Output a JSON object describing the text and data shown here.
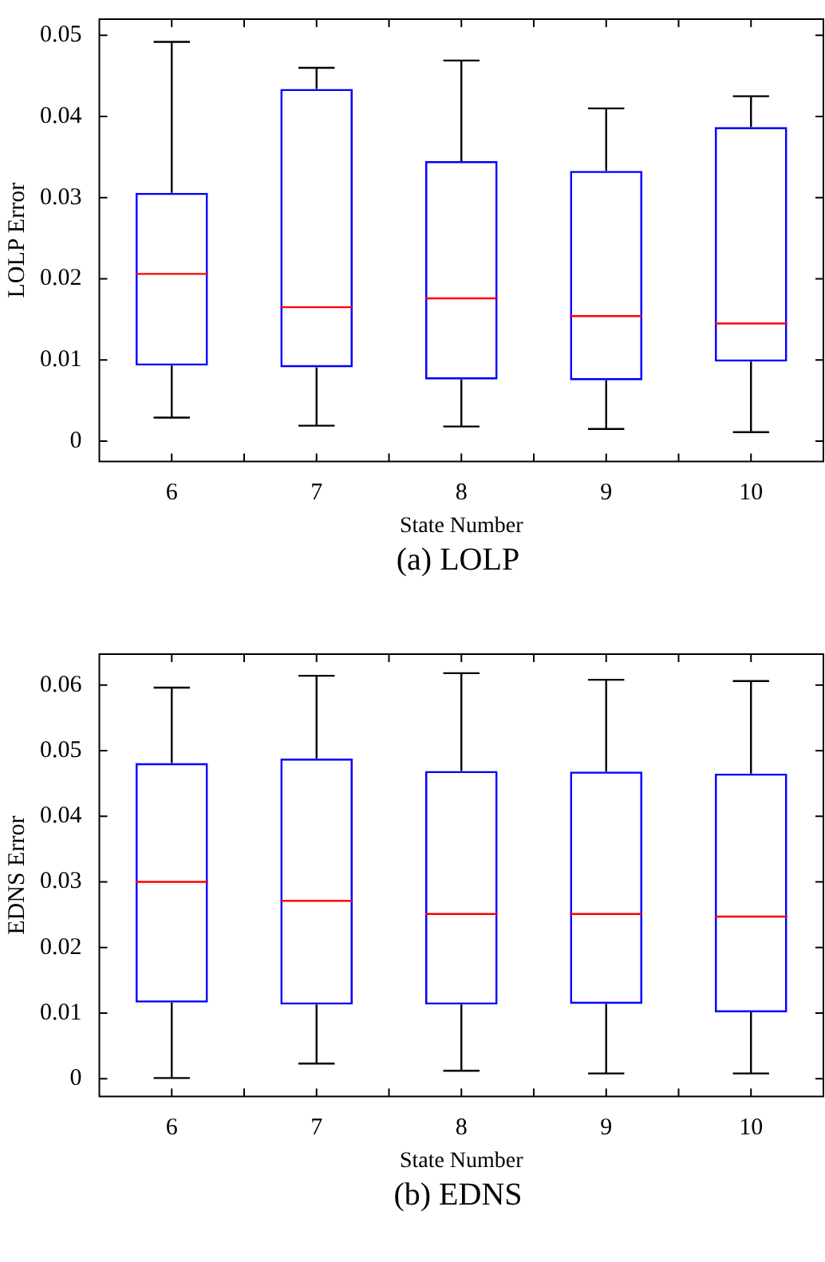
{
  "chart_data": [
    {
      "type": "box",
      "title": "(a) LOLP",
      "xlabel": "State Number",
      "ylabel": "LOLP Error",
      "categories": [
        "6",
        "7",
        "8",
        "9",
        "10"
      ],
      "ylim": [
        -0.0025,
        0.052
      ],
      "yticks": [
        0,
        0.01,
        0.02,
        0.03,
        0.04,
        0.05
      ],
      "series": [
        {
          "color": "#0000ff",
          "boxes": [
            {
              "low": 0.0029,
              "q1": 0.0093,
              "median": 0.0206,
              "q3": 0.0306,
              "high": 0.0492
            },
            {
              "low": 0.0019,
              "q1": 0.0091,
              "median": 0.0165,
              "q3": 0.0434,
              "high": 0.046
            },
            {
              "low": 0.0018,
              "q1": 0.0076,
              "median": 0.0176,
              "q3": 0.0345,
              "high": 0.0469
            },
            {
              "low": 0.0015,
              "q1": 0.0075,
              "median": 0.0154,
              "q3": 0.0333,
              "high": 0.041
            },
            {
              "low": 0.0011,
              "q1": 0.0098,
              "median": 0.0145,
              "q3": 0.0387,
              "high": 0.0425
            }
          ]
        }
      ]
    },
    {
      "type": "box",
      "title": "(b) EDNS",
      "xlabel": "State Number",
      "ylabel": "EDNS Error",
      "categories": [
        "6",
        "7",
        "8",
        "9",
        "10"
      ],
      "ylim": [
        -0.0027,
        0.0647
      ],
      "yticks": [
        0,
        0.01,
        0.02,
        0.03,
        0.04,
        0.05,
        0.06
      ],
      "series": [
        {
          "color": "#0000ff",
          "boxes": [
            {
              "low": 0.0001,
              "q1": 0.0116,
              "median": 0.03,
              "q3": 0.0481,
              "high": 0.0596
            },
            {
              "low": 0.0023,
              "q1": 0.0113,
              "median": 0.0271,
              "q3": 0.0488,
              "high": 0.0614
            },
            {
              "low": 0.0012,
              "q1": 0.0113,
              "median": 0.0251,
              "q3": 0.0469,
              "high": 0.0618
            },
            {
              "low": 0.0008,
              "q1": 0.0114,
              "median": 0.0251,
              "q3": 0.0468,
              "high": 0.0608
            },
            {
              "low": 0.0008,
              "q1": 0.0101,
              "median": 0.0247,
              "q3": 0.0465,
              "high": 0.0606
            }
          ]
        }
      ]
    }
  ]
}
